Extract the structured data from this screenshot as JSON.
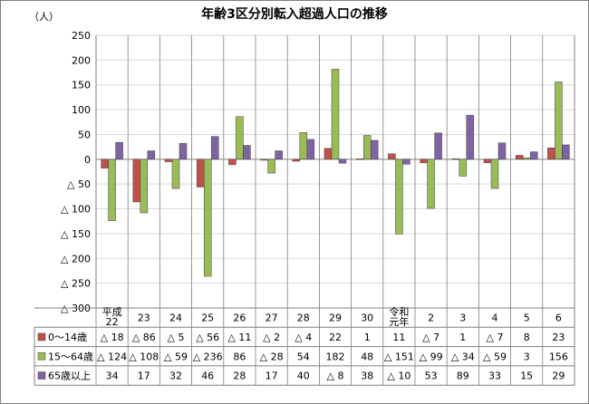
{
  "chart_data": {
    "type": "bar",
    "title": "年齢3区分別転入超過人口の推移",
    "unit_label": "（人）",
    "ylim": [
      -300,
      250
    ],
    "yticks": [
      {
        "value": 250,
        "label": "250"
      },
      {
        "value": 200,
        "label": "200"
      },
      {
        "value": 150,
        "label": "150"
      },
      {
        "value": 100,
        "label": "100"
      },
      {
        "value": 50,
        "label": "50"
      },
      {
        "value": 0,
        "label": "0"
      },
      {
        "value": -50,
        "label": "△ 50"
      },
      {
        "value": -100,
        "label": "△ 100"
      },
      {
        "value": -150,
        "label": "△ 150"
      },
      {
        "value": -200,
        "label": "△ 200"
      },
      {
        "value": -250,
        "label": "△ 250"
      },
      {
        "value": -300,
        "label": "△ 300"
      }
    ],
    "grid": true,
    "legend_position": "data-table",
    "categories": [
      "平成\n22",
      "23",
      "24",
      "25",
      "26",
      "27",
      "28",
      "29",
      "30",
      "令和\n元年",
      "2",
      "3",
      "4",
      "5",
      "6"
    ],
    "series": [
      {
        "name": "0～14歳",
        "color": "#c0504d",
        "values": [
          -18,
          -86,
          -5,
          -56,
          -11,
          -2,
          -4,
          22,
          1,
          11,
          -7,
          1,
          -7,
          8,
          23
        ],
        "labels": [
          "△ 18",
          "△ 86",
          "△ 5",
          "△ 56",
          "△ 11",
          "△ 2",
          "△ 4",
          "22",
          "1",
          "11",
          "△ 7",
          "1",
          "△ 7",
          "8",
          "23"
        ]
      },
      {
        "name": "15～64歳",
        "color": "#9bbb59",
        "values": [
          -124,
          -108,
          -59,
          -236,
          86,
          -28,
          54,
          182,
          48,
          -151,
          -99,
          -34,
          -59,
          3,
          156
        ],
        "labels": [
          "△ 124",
          "△ 108",
          "△ 59",
          "△ 236",
          "86",
          "△ 28",
          "54",
          "182",
          "48",
          "△ 151",
          "△ 99",
          "△ 34",
          "△ 59",
          "3",
          "156"
        ]
      },
      {
        "name": "65歳以上",
        "color": "#8064a2",
        "values": [
          34,
          17,
          32,
          46,
          28,
          17,
          40,
          -8,
          38,
          -10,
          53,
          89,
          33,
          15,
          29
        ],
        "labels": [
          "34",
          "17",
          "32",
          "46",
          "28",
          "17",
          "40",
          "△ 8",
          "38",
          "△ 10",
          "53",
          "89",
          "33",
          "15",
          "29"
        ]
      }
    ]
  }
}
